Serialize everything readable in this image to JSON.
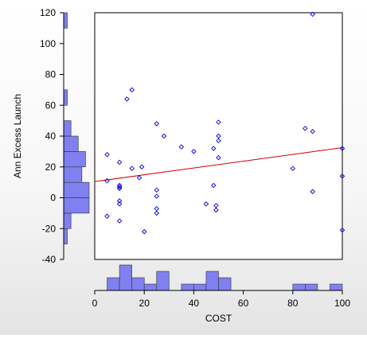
{
  "chart_data": {
    "type": "scatter",
    "xlabel": "COST",
    "ylabel": "Ann Excess Launch",
    "xlim": [
      0,
      100
    ],
    "ylim": [
      -40,
      120
    ],
    "x_ticks": [
      0,
      20,
      40,
      60,
      80,
      100
    ],
    "y_ticks": [
      -40,
      -20,
      0,
      20,
      40,
      60,
      80,
      100,
      120
    ],
    "grid": false,
    "colors": {
      "points": "#0000cc",
      "fit_line": "#cc0000",
      "histogram_fill": "#8080f0",
      "histogram_edge": "#333333"
    },
    "points": [
      {
        "x": 5,
        "y": 28
      },
      {
        "x": 5,
        "y": 11
      },
      {
        "x": 5,
        "y": -12
      },
      {
        "x": 10,
        "y": 23
      },
      {
        "x": 10,
        "y": 8
      },
      {
        "x": 10,
        "y": 7
      },
      {
        "x": 10,
        "y": 6
      },
      {
        "x": 10,
        "y": -2
      },
      {
        "x": 10,
        "y": -4
      },
      {
        "x": 10,
        "y": -15
      },
      {
        "x": 13,
        "y": 64
      },
      {
        "x": 15,
        "y": 70
      },
      {
        "x": 15,
        "y": 19
      },
      {
        "x": 18,
        "y": 13
      },
      {
        "x": 19,
        "y": 20
      },
      {
        "x": 20,
        "y": -22
      },
      {
        "x": 25,
        "y": 48
      },
      {
        "x": 25,
        "y": 5
      },
      {
        "x": 25,
        "y": 1
      },
      {
        "x": 25,
        "y": -7
      },
      {
        "x": 25,
        "y": -10
      },
      {
        "x": 28,
        "y": 40
      },
      {
        "x": 35,
        "y": 33
      },
      {
        "x": 40,
        "y": 30
      },
      {
        "x": 45,
        "y": -4
      },
      {
        "x": 48,
        "y": 32
      },
      {
        "x": 48,
        "y": 8
      },
      {
        "x": 49,
        "y": -5
      },
      {
        "x": 49,
        "y": -8
      },
      {
        "x": 50,
        "y": 49
      },
      {
        "x": 50,
        "y": 40
      },
      {
        "x": 50,
        "y": 37
      },
      {
        "x": 50,
        "y": 26
      },
      {
        "x": 80,
        "y": 19
      },
      {
        "x": 85,
        "y": 45
      },
      {
        "x": 88,
        "y": 119
      },
      {
        "x": 88,
        "y": 43
      },
      {
        "x": 88,
        "y": 4
      },
      {
        "x": 100,
        "y": 32
      },
      {
        "x": 100,
        "y": 14
      },
      {
        "x": 100,
        "y": -21
      }
    ],
    "fit_line": {
      "x": [
        0,
        100
      ],
      "y": [
        10.5,
        32.5
      ]
    },
    "x_histogram": {
      "bin_edges": [
        5,
        10,
        15,
        20,
        25,
        30,
        35,
        40,
        45,
        50,
        55,
        60,
        65,
        70,
        75,
        80,
        85,
        90,
        95,
        100
      ],
      "counts": [
        2,
        4,
        2,
        1,
        3,
        0,
        1,
        1,
        3,
        2,
        0,
        0,
        0,
        0,
        0,
        1,
        1,
        0,
        1
      ]
    },
    "y_histogram": {
      "bin_edges": [
        -30,
        -20,
        -10,
        0,
        10,
        20,
        30,
        40,
        50,
        60,
        70,
        80,
        90,
        100,
        110,
        120
      ],
      "counts": [
        1,
        2,
        7,
        7,
        5,
        6,
        4,
        2,
        0,
        1,
        0,
        0,
        0,
        0,
        1
      ]
    }
  }
}
